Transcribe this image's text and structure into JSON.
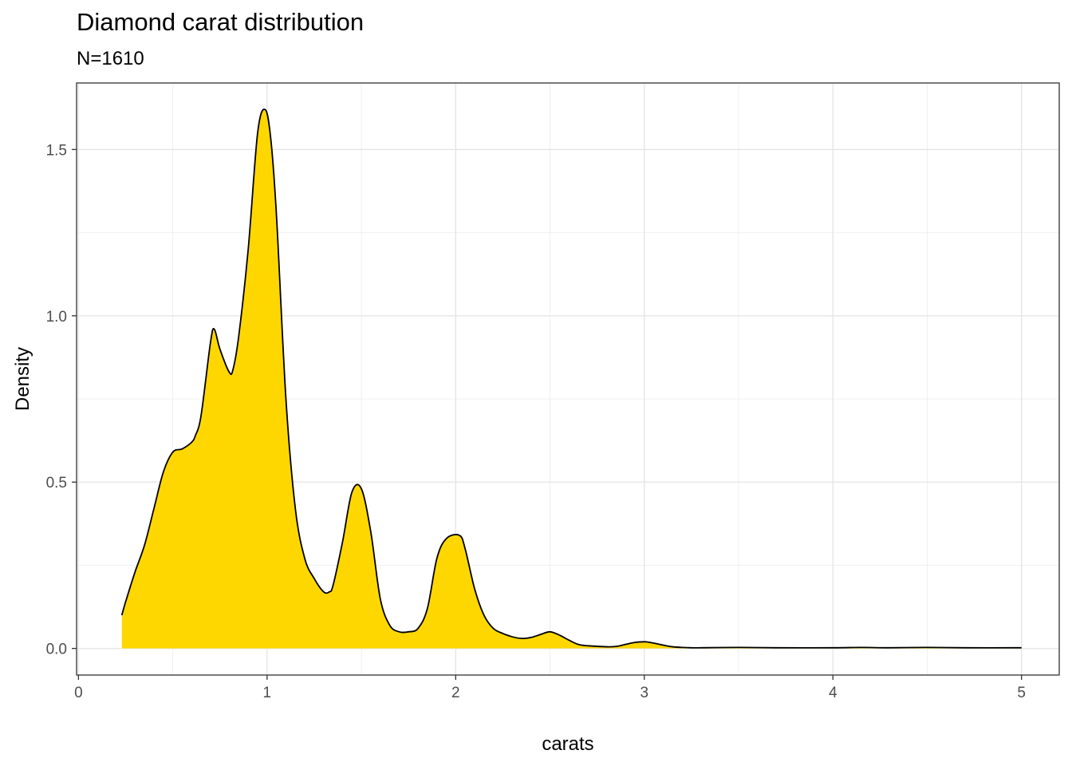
{
  "chart_data": {
    "type": "area",
    "title": "Diamond carat distribution",
    "subtitle": "N=1610",
    "xlabel": "carats",
    "ylabel": "Density",
    "xlim": [
      -0.01,
      5.2
    ],
    "ylim": [
      -0.08,
      1.7
    ],
    "x_ticks": [
      0,
      1,
      2,
      3,
      4,
      5
    ],
    "x_tick_labels": [
      "0",
      "1",
      "2",
      "3",
      "4",
      "5"
    ],
    "y_ticks": [
      0.0,
      0.5,
      1.0,
      1.5
    ],
    "y_tick_labels": [
      "0.0",
      "0.5",
      "1.0",
      "1.5"
    ],
    "grid": true,
    "fill_color": "#FFD700",
    "line_color": "#000000",
    "x": [
      0.23,
      0.25,
      0.3,
      0.35,
      0.4,
      0.45,
      0.5,
      0.55,
      0.6,
      0.62,
      0.65,
      0.7,
      0.72,
      0.75,
      0.8,
      0.82,
      0.85,
      0.9,
      0.95,
      0.99,
      1.02,
      1.05,
      1.1,
      1.15,
      1.2,
      1.25,
      1.3,
      1.33,
      1.35,
      1.4,
      1.45,
      1.5,
      1.55,
      1.6,
      1.65,
      1.7,
      1.75,
      1.8,
      1.85,
      1.9,
      1.95,
      2.02,
      2.05,
      2.1,
      2.15,
      2.2,
      2.25,
      2.3,
      2.35,
      2.4,
      2.45,
      2.5,
      2.55,
      2.6,
      2.65,
      2.7,
      2.8,
      2.85,
      2.9,
      2.95,
      3.0,
      3.02,
      3.05,
      3.1,
      3.15,
      3.2,
      3.25,
      3.3,
      3.5,
      3.7,
      4.0,
      4.15,
      4.3,
      4.5,
      4.7,
      5.0
    ],
    "values": [
      0.1,
      0.14,
      0.23,
      0.31,
      0.42,
      0.53,
      0.59,
      0.6,
      0.62,
      0.64,
      0.7,
      0.92,
      0.96,
      0.9,
      0.83,
      0.84,
      0.94,
      1.2,
      1.55,
      1.62,
      1.53,
      1.3,
      0.75,
      0.42,
      0.27,
      0.21,
      0.17,
      0.17,
      0.19,
      0.32,
      0.47,
      0.48,
      0.35,
      0.15,
      0.07,
      0.05,
      0.05,
      0.06,
      0.12,
      0.27,
      0.33,
      0.34,
      0.3,
      0.18,
      0.1,
      0.06,
      0.045,
      0.035,
      0.03,
      0.033,
      0.042,
      0.05,
      0.04,
      0.025,
      0.012,
      0.008,
      0.005,
      0.006,
      0.012,
      0.018,
      0.02,
      0.019,
      0.016,
      0.01,
      0.005,
      0.003,
      0.002,
      0.002,
      0.003,
      0.002,
      0.002,
      0.003,
      0.002,
      0.003,
      0.002,
      0.002
    ]
  }
}
